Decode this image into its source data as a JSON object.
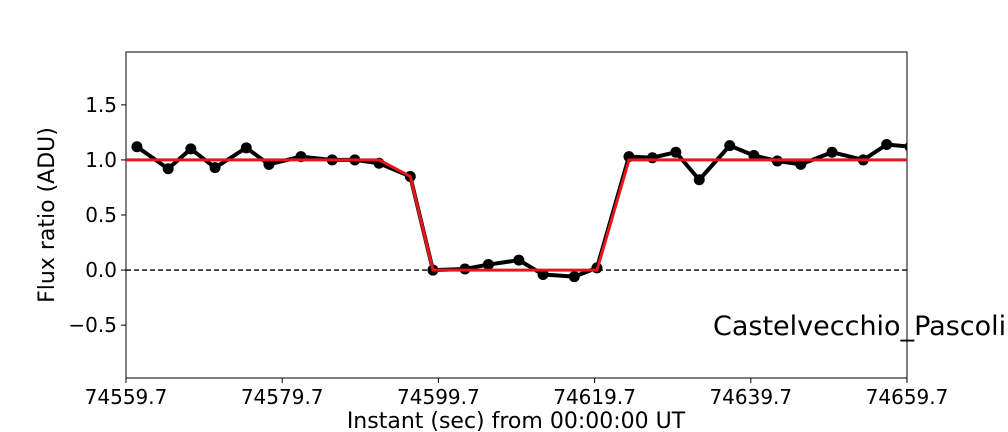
{
  "chart_data": {
    "type": "line",
    "xlabel": "Instant (sec) from 00:00:00 UT",
    "ylabel": "Flux ratio (ADU)",
    "annotation": "Castelvecchio_Pascoli",
    "xlim": [
      74559.7,
      74659.7
    ],
    "xticks": [
      74559.7,
      74579.7,
      74599.7,
      74619.7,
      74639.7,
      74659.7
    ],
    "ylim": [
      -0.98,
      1.98
    ],
    "yticks": [
      {
        "value": -0.5,
        "label": "−0.5"
      },
      {
        "value": 0,
        "label": "0.0"
      },
      0.5,
      {
        "value": 1,
        "label": "1.0"
      },
      1.5
    ],
    "reference_line": 0,
    "series": [
      {
        "color": "#000000",
        "markers": true,
        "x": [
          74561.1,
          74565.1,
          74568.0,
          74571.1,
          74575.1,
          74578.0,
          74582.1,
          74586.1,
          74589.0,
          74592.1,
          74596.1,
          74599.0,
          74603.1,
          74606.1,
          74610.0,
          74613.1,
          74617.1,
          74620.0,
          74624.1,
          74627.1,
          74630.1,
          74633.1,
          74637.0,
          74640.1,
          74643.1,
          74646.1,
          74650.1,
          74654.1,
          74657.1,
          74660.1
        ],
        "values": [
          1.12,
          0.92,
          1.1,
          0.93,
          1.11,
          0.96,
          1.03,
          1.0,
          1.0,
          0.97,
          0.85,
          0.0,
          0.01,
          0.05,
          0.09,
          -0.04,
          -0.06,
          0.02,
          1.03,
          1.02,
          1.07,
          0.82,
          1.13,
          1.04,
          0.99,
          0.96,
          1.07,
          1.0,
          1.14,
          1.12
        ]
      },
      {
        "color": "#e8161b",
        "markers": false,
        "x": [
          74559.7,
          74592.1,
          74596.1,
          74599.0,
          74620.0,
          74624.1,
          74659.7
        ],
        "values": [
          1,
          1,
          0.85,
          0,
          0,
          1,
          1
        ]
      }
    ]
  }
}
